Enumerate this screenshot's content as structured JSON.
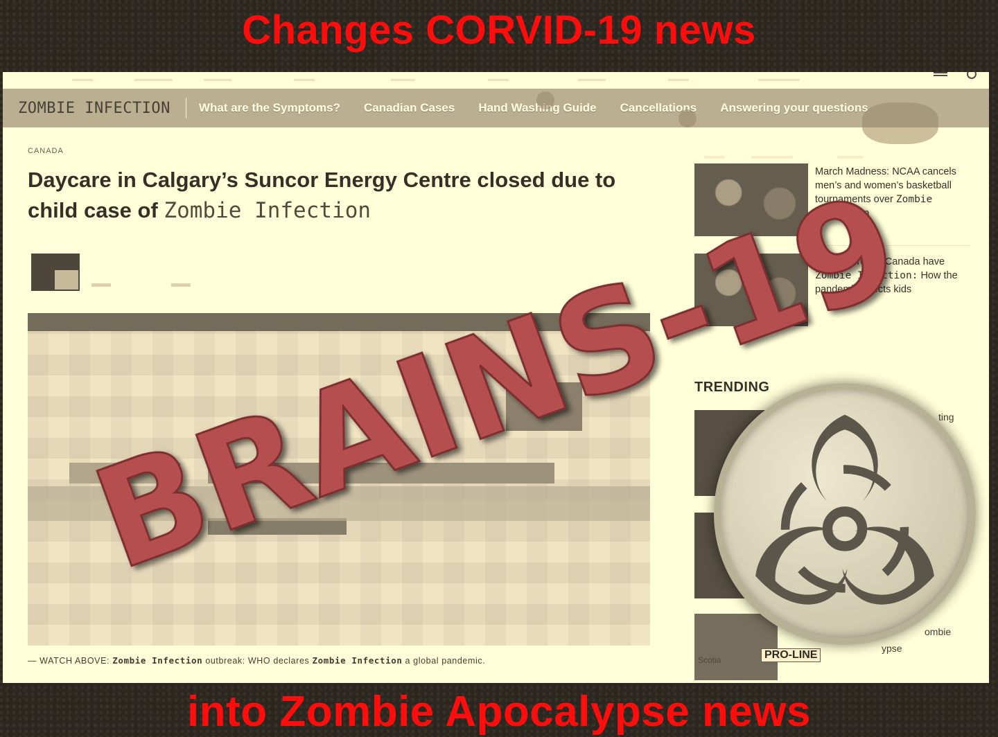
{
  "banner": {
    "top": "Changes CORVID-19 news",
    "bottom": "into Zombie Apocalypse news"
  },
  "navbar": {
    "brand": "ZOMBIE INFECTION",
    "items": [
      "What are the Symptoms?",
      "Canadian Cases",
      "Hand Washing Guide",
      "Cancellations",
      "Answering your questions"
    ]
  },
  "article": {
    "kicker": "CANADA",
    "headline_part1": "Daycare in Calgary’s Suncor Energy Centre closed due to child case of",
    "headline_zi": "Zombie Infection",
    "caption_prefix": "— WATCH ABOVE:",
    "caption_zi1": "Zombie Infection",
    "caption_mid": "outbreak: WHO declares",
    "caption_zi2": "Zombie Infection",
    "caption_suffix": "a global pandemic."
  },
  "sidebar": {
    "stories": [
      {
        "pre": "March Madness: NCAA cancels men’s and women’s basketball tournaments over",
        "zi": "Zombie Infection",
        "post": ""
      },
      {
        "pre": "Two children in Canada have",
        "zi": "Zombie Infection:",
        "post": "How the pandemic affects kids"
      }
    ],
    "trending_label": "TRENDING",
    "trending_fragments": [
      "ting",
      "ombie",
      "ypse"
    ],
    "proline": "PRO-LINE",
    "scotia": "Scotia"
  },
  "overlay": {
    "stamp_text": "BRAINS-19",
    "stamp_color": "#b5504f"
  },
  "icons": {
    "badge": "biohazard-icon"
  }
}
